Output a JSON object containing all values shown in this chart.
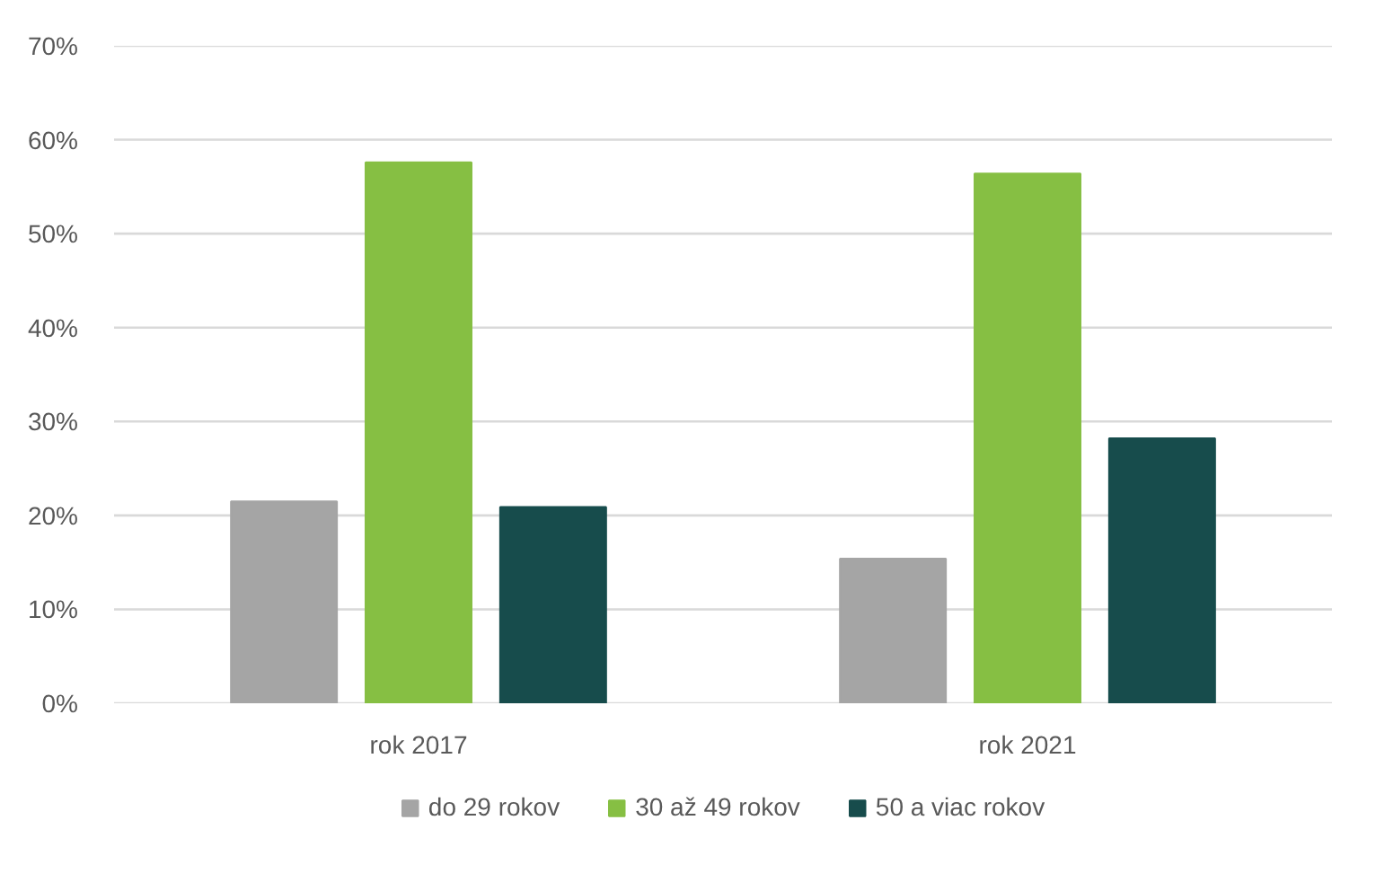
{
  "chart_data": {
    "type": "bar",
    "categories": [
      "rok 2017",
      "rok 2021"
    ],
    "series": [
      {
        "name": "do 29 rokov",
        "color": "#a5a5a5",
        "values": [
          21.5,
          15.4
        ]
      },
      {
        "name": "30 až 49 rokov",
        "color": "#86bf43",
        "values": [
          57.6,
          56.4
        ]
      },
      {
        "name": "50 a viac rokov",
        "color": "#174c4c",
        "values": [
          20.9,
          28.2
        ]
      }
    ],
    "ylim": [
      0,
      70
    ],
    "yticks": [
      {
        "value": 0,
        "label": "0%"
      },
      {
        "value": 10,
        "label": "10%"
      },
      {
        "value": 20,
        "label": "20%"
      },
      {
        "value": 30,
        "label": "30%"
      },
      {
        "value": 40,
        "label": "40%"
      },
      {
        "value": 50,
        "label": "50%"
      },
      {
        "value": 60,
        "label": "60%"
      },
      {
        "value": 70,
        "label": "70%"
      }
    ],
    "grid": "y",
    "legend": "bottom"
  }
}
